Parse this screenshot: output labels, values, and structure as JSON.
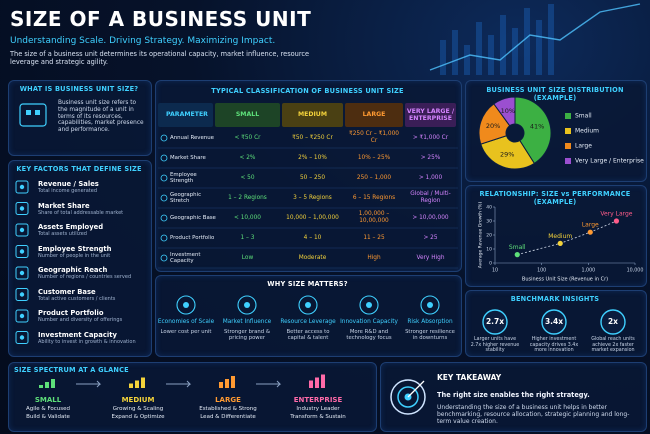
{
  "header": {
    "title": "SIZE OF A BUSINESS UNIT",
    "subtitle": "Understanding Scale. Driving Strategy. Maximizing Impact.",
    "description": "The size of a business unit determines its operational capacity, market influence, resource leverage and strategic agility."
  },
  "definition": {
    "title": "WHAT IS BUSINESS UNIT SIZE?",
    "text": "Business unit size refers to the magnitude of a unit in terms of its resources, capabilities, market presence and performance."
  },
  "key_factors": {
    "title": "KEY FACTORS THAT DEFINE SIZE",
    "items": [
      {
        "name": "Revenue / Sales",
        "description": "Total income generated"
      },
      {
        "name": "Market Share",
        "description": "Share of total addressable market"
      },
      {
        "name": "Assets Employed",
        "description": "Total assets utilized"
      },
      {
        "name": "Employee Strength",
        "description": "Number of people in the unit"
      },
      {
        "name": "Geographic Reach",
        "description": "Number of regions / countries served"
      },
      {
        "name": "Customer Base",
        "description": "Total active customers / clients"
      },
      {
        "name": "Product Portfolio",
        "description": "Number and diversity of offerings"
      },
      {
        "name": "Investment Capacity",
        "description": "Ability to invest in growth & innovation"
      }
    ]
  },
  "table": {
    "title": "TYPICAL CLASSIFICATION OF BUSINESS UNIT SIZE",
    "columns": [
      "PARAMETER",
      "SMALL",
      "MEDIUM",
      "LARGE",
      "VERY LARGE / ENTERPRISE"
    ],
    "rows": [
      [
        "Annual Revenue",
        "< ₹50 Cr",
        "₹50 – ₹250 Cr",
        "₹250 Cr – ₹1,000 Cr",
        "> ₹1,000 Cr"
      ],
      [
        "Market Share",
        "< 2%",
        "2% – 10%",
        "10% – 25%",
        "> 25%"
      ],
      [
        "Employee Strength",
        "< 50",
        "50 – 250",
        "250 – 1,000",
        "> 1,000"
      ],
      [
        "Geographic Stretch",
        "1 – 2 Regions",
        "3 – 5 Regions",
        "6 – 15 Regions",
        "Global / Multi-Region"
      ],
      [
        "Geographic Base",
        "< 10,000",
        "10,000 – 1,00,000",
        "1,00,000 – 10,00,000",
        "> 10,00,000"
      ],
      [
        "Product Portfolio",
        "1 – 3",
        "4 – 10",
        "11 – 25",
        "> 25"
      ],
      [
        "Investment Capacity",
        "Low",
        "Moderate",
        "High",
        "Very High"
      ]
    ]
  },
  "why_matters": {
    "title": "WHY SIZE MATTERS?",
    "items": [
      {
        "name": "Economies of Scale",
        "description": "Lower cost per unit"
      },
      {
        "name": "Market Influence",
        "description": "Stronger brand & pricing power"
      },
      {
        "name": "Resource Leverage",
        "description": "Better access to capital & talent"
      },
      {
        "name": "Innovation Capacity",
        "description": "More R&D and technology focus"
      },
      {
        "name": "Risk Absorption",
        "description": "Stronger resilience in downturns"
      }
    ]
  },
  "benchmark": {
    "title": "BENCHMARK INSIGHTS",
    "items": [
      {
        "value": "2.7x",
        "text": "Larger units have 2.7x higher revenue stability"
      },
      {
        "value": "3.4x",
        "text": "Higher investment capacity drives 3.4x more innovation"
      },
      {
        "value": "2x",
        "text": "Global reach units achieve 2x faster market expansion"
      }
    ]
  },
  "spectrum": {
    "title": "SIZE SPECTRUM AT A GLANCE",
    "items": [
      {
        "name": "SMALL",
        "trait": "Agile & Focused",
        "focus": "Build & Validate"
      },
      {
        "name": "MEDIUM",
        "trait": "Growing & Scaling",
        "focus": "Expand & Optimize"
      },
      {
        "name": "LARGE",
        "trait": "Established & Strong",
        "focus": "Lead & Differentiate"
      },
      {
        "name": "ENTERPRISE",
        "trait": "Industry Leader",
        "focus": "Transform & Sustain"
      }
    ]
  },
  "takeaway": {
    "title": "KEY TAKEAWAY",
    "headline": "The right size enables the right strategy.",
    "text": "Understanding the size of a business unit helps in better benchmarking, resource allocation, strategic planning and long-term value creation."
  },
  "chart_data": [
    {
      "type": "pie",
      "title": "BUSINESS UNIT SIZE DISTRIBUTION (EXAMPLE)",
      "categories": [
        "Small",
        "Medium",
        "Large",
        "Very Large / Enterprise"
      ],
      "values": [
        41,
        29,
        20,
        10
      ],
      "value_labels": [
        "41%",
        "29%",
        "20%",
        "10%"
      ],
      "colors": [
        "#3cb043",
        "#e8c21e",
        "#f08a1c",
        "#9b4fd0"
      ]
    },
    {
      "type": "scatter",
      "title": "RELATIONSHIP: SIZE vs PERFORMANCE (EXAMPLE)",
      "x_label": "Business Unit Size (Revenue in Cr)",
      "y_label": "Average Revenue Growth (%)",
      "labels": [
        "Small",
        "Medium",
        "Large",
        "Very Large"
      ],
      "x": [
        30,
        250,
        1100,
        4000
      ],
      "values": [
        6,
        14,
        22,
        30
      ],
      "colors": [
        "#5ee07a",
        "#f4d33b",
        "#ff9a32",
        "#ff5c8a"
      ],
      "log_x": true,
      "xlim": [
        10,
        10000
      ],
      "xticks": [
        10,
        100,
        {
          "value": 1000,
          "label": "1,000"
        },
        {
          "value": 10000,
          "label": "10,000"
        }
      ],
      "ylim": [
        0,
        40
      ],
      "yticks": [
        0,
        10,
        20,
        30,
        40
      ]
    }
  ]
}
